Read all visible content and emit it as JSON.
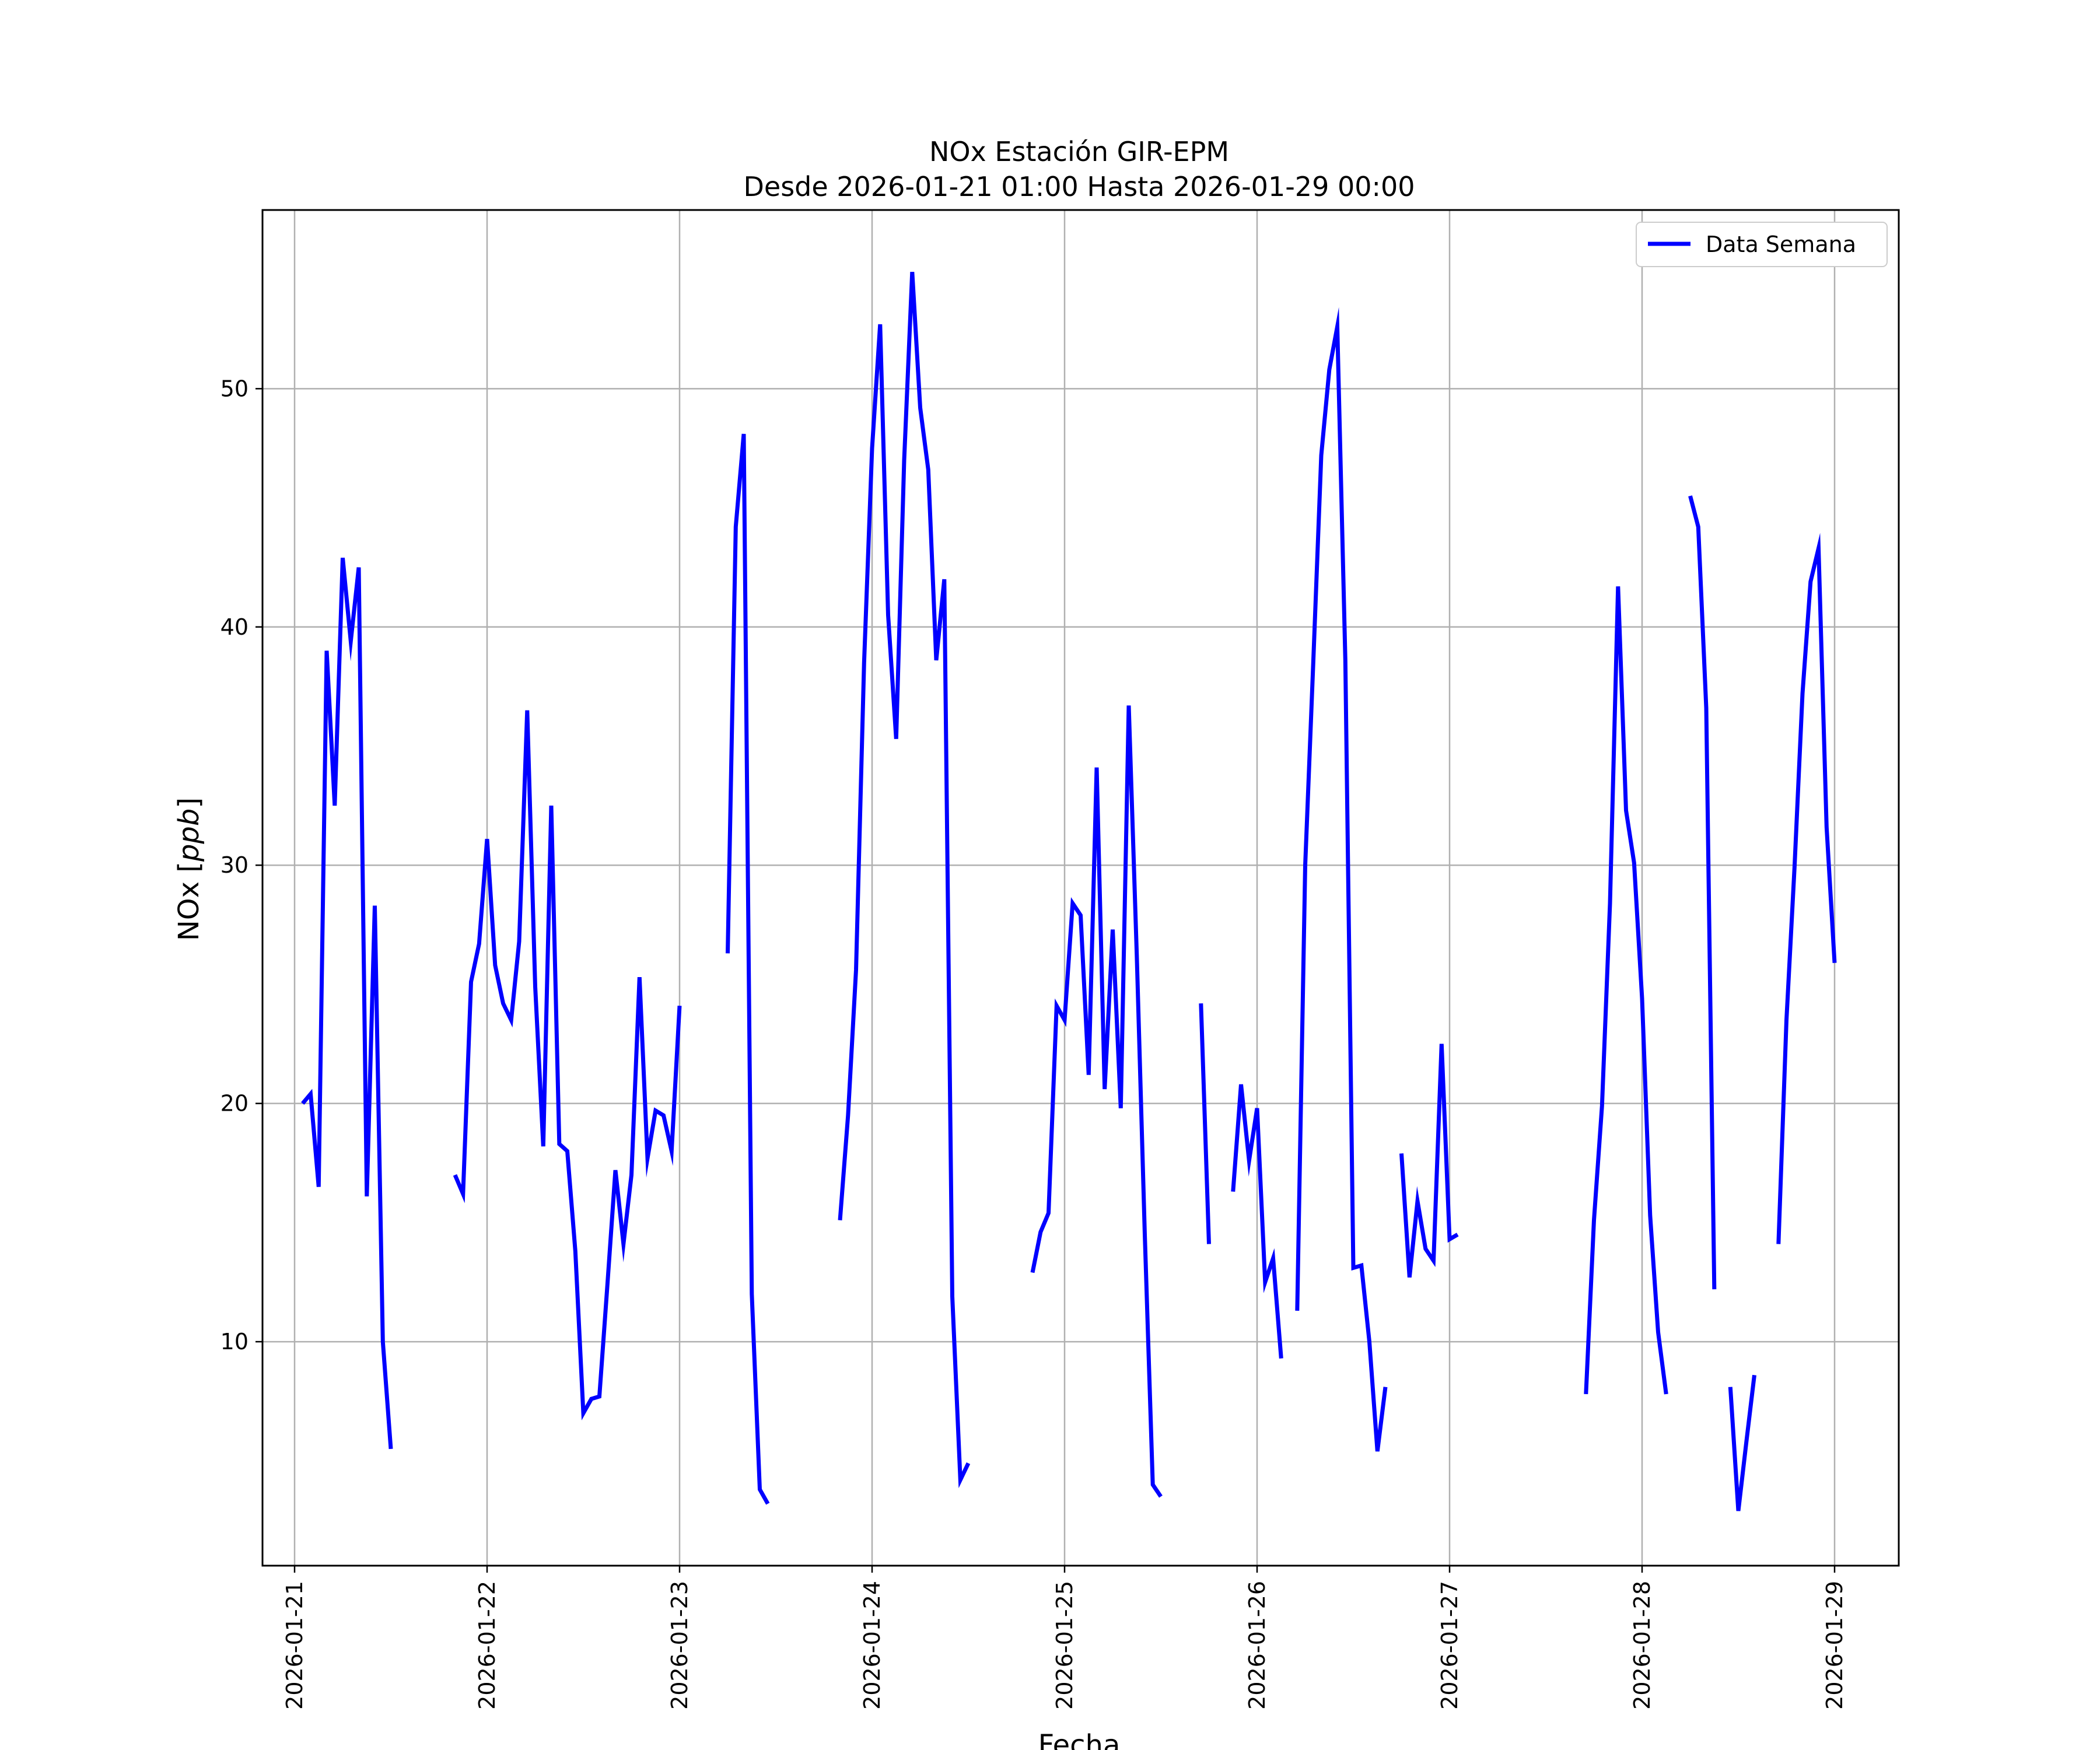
{
  "chart_data": {
    "type": "line",
    "title": "NOx Estación GIR-EPM",
    "subtitle": "Desde 2026-01-21 01:00 Hasta 2026-01-29 00:00",
    "xlabel": "Fecha",
    "ylabel": "NOx [ppb]",
    "xlim": [
      "2026-01-20 20:00",
      "2026-01-29 08:00"
    ],
    "ylim": [
      0.6,
      57.5
    ],
    "x_ticks": [
      "2026-01-21",
      "2026-01-22",
      "2026-01-23",
      "2026-01-24",
      "2026-01-25",
      "2026-01-26",
      "2026-01-27",
      "2026-01-28",
      "2026-01-29"
    ],
    "y_ticks": [
      10,
      20,
      30,
      40,
      50
    ],
    "grid": true,
    "legend_position": "top-right",
    "series": [
      {
        "name": "Data Semana",
        "color": "#0000ff",
        "points": [
          [
            "2026-01-21 01:00",
            20.0
          ],
          [
            "2026-01-21 02:00",
            20.4
          ],
          [
            "2026-01-21 03:00",
            16.5
          ],
          [
            "2026-01-21 04:00",
            39.0
          ],
          [
            "2026-01-21 05:00",
            32.5
          ],
          [
            "2026-01-21 06:00",
            42.9
          ],
          [
            "2026-01-21 07:00",
            39.4
          ],
          [
            "2026-01-21 08:00",
            42.5
          ],
          [
            "2026-01-21 09:00",
            16.1
          ],
          [
            "2026-01-21 10:00",
            28.3
          ],
          [
            "2026-01-21 11:00",
            10.0
          ],
          [
            "2026-01-21 12:00",
            5.5
          ],
          [
            "2026-01-21 13:00",
            null
          ],
          [
            "2026-01-21 20:00",
            17.0
          ],
          [
            "2026-01-21 21:00",
            16.2
          ],
          [
            "2026-01-21 22:00",
            25.1
          ],
          [
            "2026-01-21 23:00",
            26.7
          ],
          [
            "2026-01-22 00:00",
            31.1
          ],
          [
            "2026-01-22 01:00",
            25.8
          ],
          [
            "2026-01-22 02:00",
            24.2
          ],
          [
            "2026-01-22 03:00",
            23.5
          ],
          [
            "2026-01-22 04:00",
            26.8
          ],
          [
            "2026-01-22 05:00",
            36.5
          ],
          [
            "2026-01-22 06:00",
            24.9
          ],
          [
            "2026-01-22 07:00",
            18.2
          ],
          [
            "2026-01-22 08:00",
            32.5
          ],
          [
            "2026-01-22 09:00",
            18.3
          ],
          [
            "2026-01-22 10:00",
            18.0
          ],
          [
            "2026-01-22 11:00",
            13.8
          ],
          [
            "2026-01-22 12:00",
            7.0
          ],
          [
            "2026-01-22 13:00",
            7.6
          ],
          [
            "2026-01-22 14:00",
            7.7
          ],
          [
            "2026-01-22 15:00",
            12.4
          ],
          [
            "2026-01-22 16:00",
            17.2
          ],
          [
            "2026-01-22 17:00",
            14.1
          ],
          [
            "2026-01-22 18:00",
            17.0
          ],
          [
            "2026-01-22 19:00",
            25.3
          ],
          [
            "2026-01-22 20:00",
            17.7
          ],
          [
            "2026-01-22 21:00",
            19.7
          ],
          [
            "2026-01-22 22:00",
            19.5
          ],
          [
            "2026-01-22 23:00",
            18.0
          ],
          [
            "2026-01-23 00:00",
            24.1
          ],
          [
            "2026-01-23 01:00",
            null
          ],
          [
            "2026-01-23 06:00",
            26.3
          ],
          [
            "2026-01-23 07:00",
            44.2
          ],
          [
            "2026-01-23 08:00",
            48.1
          ],
          [
            "2026-01-23 09:00",
            12.0
          ],
          [
            "2026-01-23 10:00",
            3.8
          ],
          [
            "2026-01-23 11:00",
            3.2
          ],
          [
            "2026-01-23 12:00",
            null
          ],
          [
            "2026-01-23 20:00",
            15.1
          ],
          [
            "2026-01-23 21:00",
            19.5
          ],
          [
            "2026-01-23 22:00",
            25.6
          ],
          [
            "2026-01-23 23:00",
            38.5
          ],
          [
            "2026-01-24 00:00",
            47.5
          ],
          [
            "2026-01-24 01:00",
            52.7
          ],
          [
            "2026-01-24 02:00",
            40.5
          ],
          [
            "2026-01-24 03:00",
            35.3
          ],
          [
            "2026-01-24 04:00",
            47.0
          ],
          [
            "2026-01-24 05:00",
            54.9
          ],
          [
            "2026-01-24 06:00",
            49.2
          ],
          [
            "2026-01-24 07:00",
            46.6
          ],
          [
            "2026-01-24 08:00",
            38.6
          ],
          [
            "2026-01-24 09:00",
            42.0
          ],
          [
            "2026-01-24 10:00",
            11.9
          ],
          [
            "2026-01-24 11:00",
            4.2
          ],
          [
            "2026-01-24 12:00",
            4.9
          ],
          [
            "2026-01-24 13:00",
            null
          ],
          [
            "2026-01-24 20:00",
            12.9
          ],
          [
            "2026-01-24 21:00",
            14.6
          ],
          [
            "2026-01-24 22:00",
            15.4
          ],
          [
            "2026-01-24 23:00",
            24.1
          ],
          [
            "2026-01-25 00:00",
            23.5
          ],
          [
            "2026-01-25 01:00",
            28.4
          ],
          [
            "2026-01-25 02:00",
            27.9
          ],
          [
            "2026-01-25 03:00",
            21.2
          ],
          [
            "2026-01-25 04:00",
            34.1
          ],
          [
            "2026-01-25 05:00",
            20.6
          ],
          [
            "2026-01-25 06:00",
            27.3
          ],
          [
            "2026-01-25 07:00",
            19.8
          ],
          [
            "2026-01-25 08:00",
            36.7
          ],
          [
            "2026-01-25 09:00",
            26.2
          ],
          [
            "2026-01-25 10:00",
            14.5
          ],
          [
            "2026-01-25 11:00",
            4.0
          ],
          [
            "2026-01-25 12:00",
            3.5
          ],
          [
            "2026-01-25 13:00",
            null
          ],
          [
            "2026-01-25 17:00",
            24.2
          ],
          [
            "2026-01-25 18:00",
            14.1
          ],
          [
            "2026-01-25 19:00",
            null
          ],
          [
            "2026-01-25 21:00",
            16.3
          ],
          [
            "2026-01-25 22:00",
            20.8
          ],
          [
            "2026-01-25 23:00",
            17.6
          ],
          [
            "2026-01-26 00:00",
            19.8
          ],
          [
            "2026-01-26 01:00",
            12.5
          ],
          [
            "2026-01-26 02:00",
            13.5
          ],
          [
            "2026-01-26 03:00",
            9.3
          ],
          [
            "2026-01-26 04:00",
            null
          ],
          [
            "2026-01-26 05:00",
            11.3
          ],
          [
            "2026-01-26 06:00",
            30.0
          ],
          [
            "2026-01-26 07:00",
            38.5
          ],
          [
            "2026-01-26 08:00",
            47.2
          ],
          [
            "2026-01-26 09:00",
            50.8
          ],
          [
            "2026-01-26 10:00",
            52.6
          ],
          [
            "2026-01-26 11:00",
            38.6
          ],
          [
            "2026-01-26 12:00",
            13.1
          ],
          [
            "2026-01-26 13:00",
            13.2
          ],
          [
            "2026-01-26 14:00",
            10.0
          ],
          [
            "2026-01-26 15:00",
            5.4
          ],
          [
            "2026-01-26 16:00",
            8.1
          ],
          [
            "2026-01-26 17:00",
            null
          ],
          [
            "2026-01-26 18:00",
            17.9
          ],
          [
            "2026-01-26 19:00",
            12.7
          ],
          [
            "2026-01-26 20:00",
            15.9
          ],
          [
            "2026-01-26 21:00",
            13.9
          ],
          [
            "2026-01-26 22:00",
            13.4
          ],
          [
            "2026-01-26 23:00",
            22.5
          ],
          [
            "2026-01-27 00:00",
            14.3
          ],
          [
            "2026-01-27 01:00",
            14.5
          ],
          [
            "2026-01-27 02:00",
            null
          ],
          [
            "2026-01-27 17:00",
            7.8
          ],
          [
            "2026-01-27 18:00",
            15.1
          ],
          [
            "2026-01-27 19:00",
            19.9
          ],
          [
            "2026-01-27 20:00",
            28.4
          ],
          [
            "2026-01-27 21:00",
            41.7
          ],
          [
            "2026-01-27 22:00",
            32.3
          ],
          [
            "2026-01-27 23:00",
            30.1
          ],
          [
            "2026-01-28 00:00",
            24.4
          ],
          [
            "2026-01-28 01:00",
            15.3
          ],
          [
            "2026-01-28 02:00",
            10.4
          ],
          [
            "2026-01-28 03:00",
            7.8
          ],
          [
            "2026-01-28 04:00",
            null
          ],
          [
            "2026-01-28 06:00",
            45.5
          ],
          [
            "2026-01-28 07:00",
            44.2
          ],
          [
            "2026-01-28 08:00",
            36.6
          ],
          [
            "2026-01-28 09:00",
            12.2
          ],
          [
            "2026-01-28 10:00",
            null
          ],
          [
            "2026-01-28 11:00",
            8.1
          ],
          [
            "2026-01-28 12:00",
            2.9
          ],
          [
            "2026-01-28 13:00",
            5.8
          ],
          [
            "2026-01-28 14:00",
            8.6
          ],
          [
            "2026-01-28 15:00",
            null
          ],
          [
            "2026-01-28 17:00",
            14.1
          ],
          [
            "2026-01-28 18:00",
            23.5
          ],
          [
            "2026-01-28 19:00",
            29.9
          ],
          [
            "2026-01-28 20:00",
            37.2
          ],
          [
            "2026-01-28 21:00",
            41.9
          ],
          [
            "2026-01-28 22:00",
            43.3
          ],
          [
            "2026-01-28 23:00",
            31.6
          ],
          [
            "2026-01-29 00:00",
            25.9
          ]
        ]
      }
    ]
  }
}
